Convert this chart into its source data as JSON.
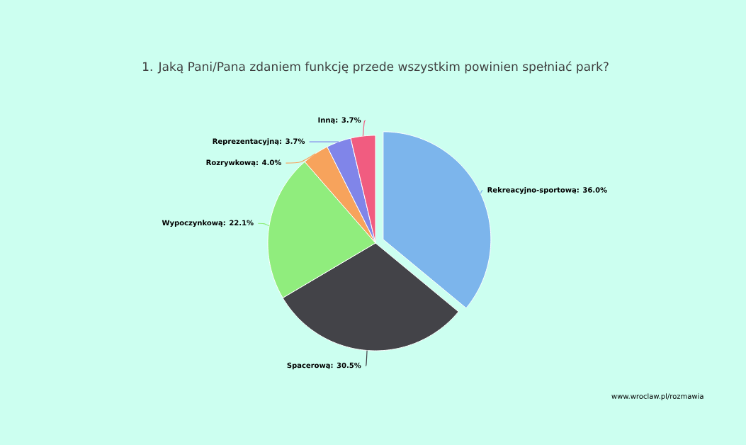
{
  "chart_data": {
    "type": "pie",
    "title": "1. Jaką Pani/Pana zdaniem funkcję przede wszystkim powinien spełniać park?",
    "categories": [
      "Rekreacyjno-sportową: 36.0%",
      "Spacerową: 30.5%",
      "Wypoczynkową: 22.1%",
      "Rozrywkową: 4.0%",
      "Reprezentacyjną: 3.7%",
      "Inną: 3.7%"
    ],
    "values": [
      36.0,
      30.5,
      22.1,
      4.0,
      3.7,
      3.7
    ],
    "colors": [
      "#7cb5ec",
      "#434348",
      "#90ed7d",
      "#f7a35c",
      "#8085e9",
      "#f15c80"
    ],
    "annotations": [
      "www.wroclaw.pl/rozmawia"
    ]
  }
}
